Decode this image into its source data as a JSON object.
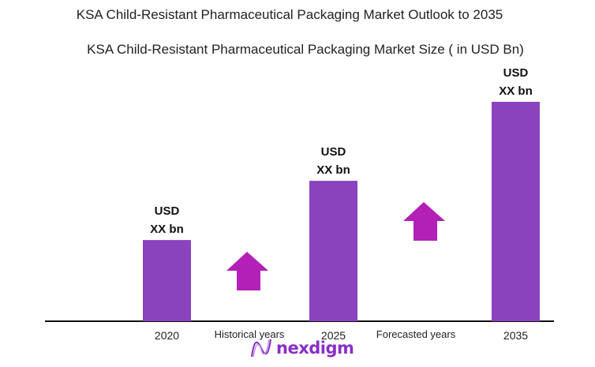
{
  "title": "KSA Child-Resistant Pharmaceutical Packaging Market Outlook to 2035",
  "subtitle": "KSA Child-Resistant Pharmaceutical Packaging Market Size  ( in USD Bn)",
  "chart_data": {
    "type": "bar",
    "categories": [
      "2020",
      "2025",
      "2035"
    ],
    "values": [
      37,
      64,
      100
    ],
    "data_labels": [
      [
        "USD",
        "XX bn"
      ],
      [
        "USD",
        "XX bn"
      ],
      [
        "USD",
        "XX bn"
      ]
    ],
    "annotations": [
      "Historical years",
      "Forecasted years"
    ],
    "bar_color": "#8a42bd",
    "arrow_color": "#b220b8",
    "grid": false,
    "legend": "none"
  },
  "brand": {
    "name": "nexdigm",
    "color": "#8a2fc9"
  }
}
